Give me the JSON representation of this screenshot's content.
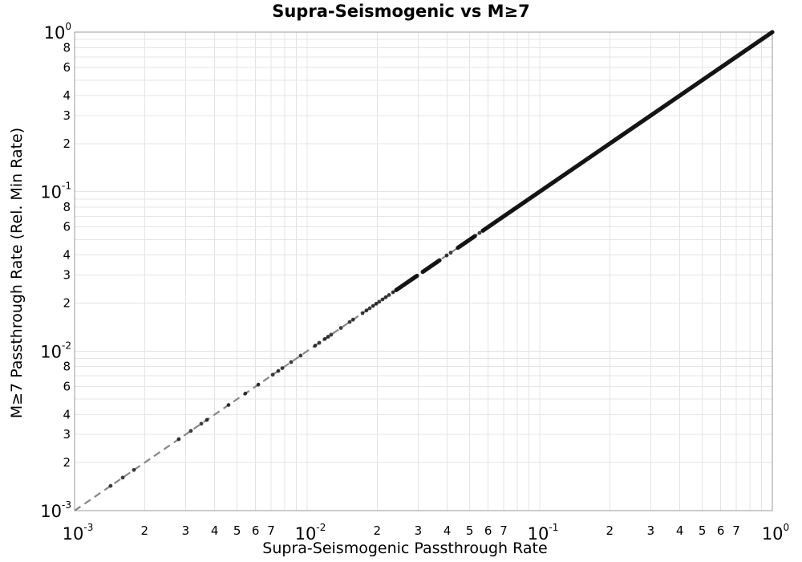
{
  "chart_data": {
    "type": "scatter",
    "title": "Supra-Seismogenic vs M≥7",
    "xlabel": "Supra-Seismogenic Passthrough Rate",
    "ylabel": "M≥7 Passthrough Rate (Rel. Min Rate)",
    "xscale": "log",
    "yscale": "log",
    "xlim": [
      0.001,
      1
    ],
    "ylim": [
      0.001,
      1
    ],
    "grid": true,
    "legend": "none",
    "relation": "All scatter points lie on the identity line y = x, spanning 1e-3 to 1",
    "major_tick_exponents": [
      -3,
      -2,
      -1,
      0
    ],
    "x_minor_tick_labels": [
      2,
      3,
      4,
      5,
      6,
      7
    ],
    "y_minor_tick_labels": [
      2,
      3,
      4,
      6,
      8
    ],
    "minor_grid_multiples": [
      2,
      3,
      4,
      5,
      6,
      7,
      8,
      9
    ],
    "points_log10": [
      -2.845,
      -2.793,
      -2.745,
      -2.552,
      -2.5,
      -2.455,
      -2.431,
      -2.338,
      -2.266,
      -2.21,
      -2.148,
      -2.124,
      -2.107,
      -2.069,
      -2.028,
      -1.966,
      -1.948,
      -1.924,
      -1.91,
      -1.897,
      -1.855,
      -1.817,
      -1.803,
      -1.762,
      -1.745,
      -1.731,
      -1.717,
      -1.703,
      -1.69,
      -1.676,
      -1.662,
      -1.648,
      -1.631,
      -1.4,
      -1.383,
      -1.259
    ],
    "dense_segments_log10": [
      [
        -1.617,
        -1.528
      ],
      [
        -1.503,
        -1.431
      ],
      [
        -1.352,
        -1.279
      ],
      [
        -1.245,
        0.0
      ]
    ],
    "identity_line": {
      "style": "dashed",
      "color": "#878787"
    },
    "style": {
      "background": "#ffffff",
      "grid_color": "#e4e4e4",
      "frame_color": "#9b9b9b",
      "marker_color": "#141414",
      "marker_opacity": 0.82,
      "band_color": "#0b0b0b",
      "text_color": "#000000"
    }
  }
}
